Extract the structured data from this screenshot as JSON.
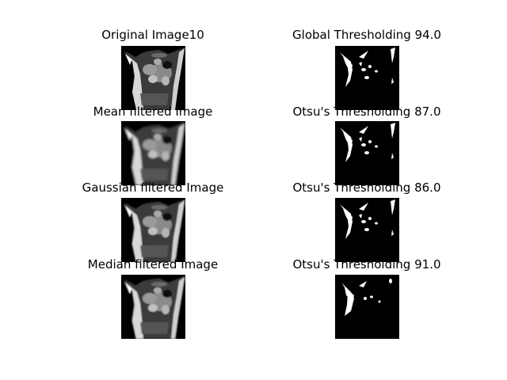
{
  "figure": {
    "left_column": [
      {
        "title": "Original Image10",
        "image": "grayscale-mri-slice"
      },
      {
        "title": "Mean filtered Image",
        "image": "mean-filtered-mri-slice"
      },
      {
        "title": "Gaussian filtered Image",
        "image": "gaussian-filtered-mri-slice"
      },
      {
        "title": "Median filtered Image",
        "image": "median-filtered-mri-slice"
      }
    ],
    "right_column": [
      {
        "title": "Global Thresholding 94.0",
        "image": "binary-threshold-mask"
      },
      {
        "title": "Otsu's Thresholding 87.0",
        "image": "binary-threshold-mask"
      },
      {
        "title": "Otsu's Thresholding 86.0",
        "image": "binary-threshold-mask"
      },
      {
        "title": "Otsu's Thresholding 91.0",
        "image": "binary-threshold-mask"
      }
    ]
  }
}
